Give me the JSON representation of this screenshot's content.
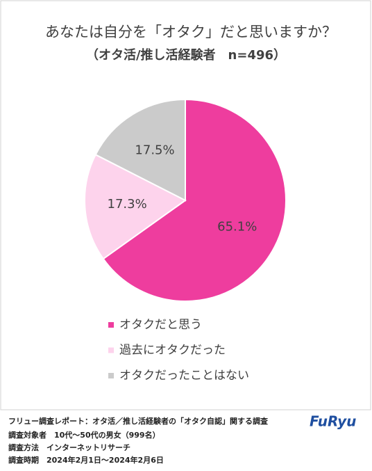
{
  "chart_data": {
    "type": "pie",
    "title": "あなたは自分を「オタク」だと思いますか？",
    "subtitle": "（オタ活/推し活経験者　n=496）",
    "categories": [
      "オタクだと思う",
      "過去にオタクだった",
      "オタクだったことはない"
    ],
    "values": [
      65.1,
      17.3,
      17.5
    ],
    "value_labels": [
      "65.1%",
      "17.3%",
      "17.5%"
    ],
    "colors": [
      "#ee3d9e",
      "#fdd3ec",
      "#cbcbcb"
    ]
  },
  "footer": {
    "lines": [
      "フリュー調査レポート：オタ活／推し活経験者の「オタク自認」関する調査",
      "調査対象者　10代～50代の男女（999名）",
      "調査方法　インターネットリサーチ",
      "調査時期　2024年2月1日～2024年2月6日"
    ],
    "logo": "FuRyu"
  }
}
